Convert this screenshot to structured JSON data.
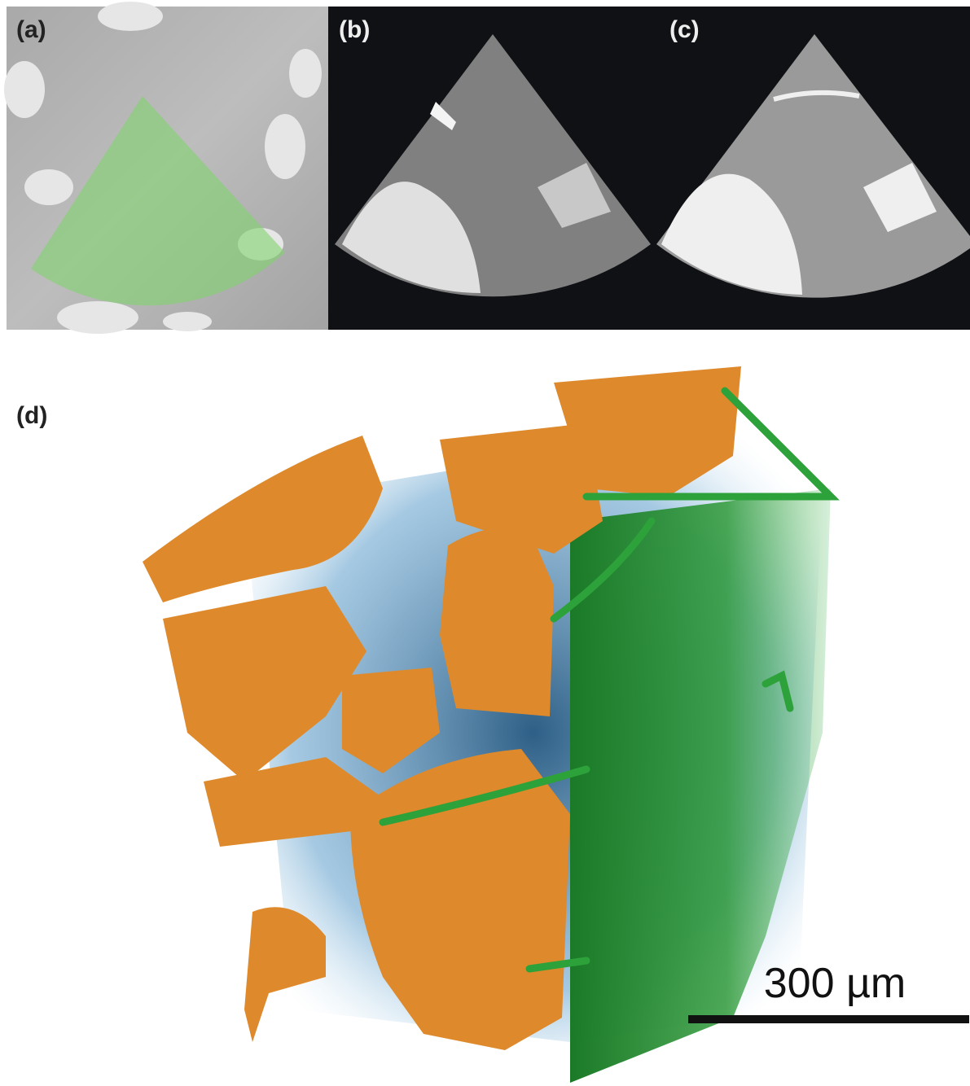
{
  "panels": [
    {
      "label": "(a)"
    },
    {
      "label": "(b)"
    },
    {
      "label": "(c)"
    },
    {
      "label": "(d)"
    }
  ],
  "scale_bar": {
    "label": "300 µm"
  }
}
